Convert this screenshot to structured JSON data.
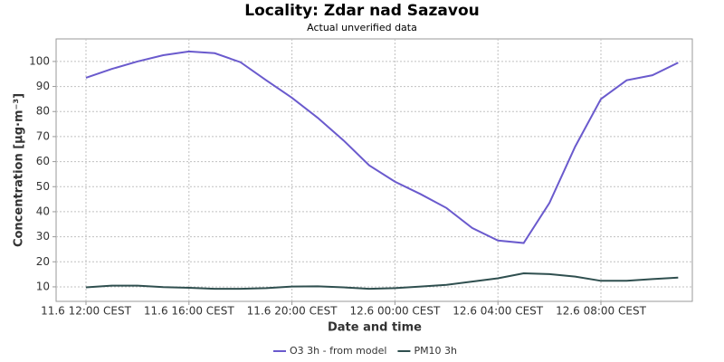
{
  "chart_data": {
    "type": "line",
    "title": "Locality: Zdar nad Sazavou",
    "subtitle": "Actual unverified data",
    "x_label": "Date and time",
    "y_label": "Concentration [µg·m⁻³]",
    "categories": [
      "11.6 12:00 CEST",
      null,
      null,
      null,
      "11.6 16:00 CEST",
      null,
      null,
      null,
      "11.6 20:00 CEST",
      null,
      null,
      null,
      "12.6 00:00 CEST",
      null,
      null,
      null,
      "12.6 04:00 CEST",
      null,
      null,
      null,
      "12.6 08:00 CEST",
      null,
      null,
      null
    ],
    "series": [
      {
        "name": "O3 3h - from model",
        "color": "#6a5acd",
        "values": [
          93.5,
          97,
          100,
          102.5,
          104,
          103.3,
          99.7,
          92.5,
          85.5,
          77.5,
          68.5,
          58.5,
          52,
          47,
          41.5,
          33.5,
          28.5,
          27.5,
          43.5,
          66,
          85,
          92.5,
          94.5,
          99.5
        ]
      },
      {
        "name": "PM10 3h",
        "color": "#2f4f4f",
        "values": [
          9.8,
          10.5,
          10.5,
          9.9,
          9.6,
          9.2,
          9.2,
          9.5,
          10.1,
          10.2,
          9.8,
          9.2,
          9.5,
          10.1,
          10.8,
          12.1,
          13.4,
          15.4,
          15.1,
          14.1,
          12.4,
          12.4,
          13.1,
          13.7
        ]
      }
    ],
    "ylim": [
      4.2,
      109
    ],
    "yticks": [
      10,
      20,
      30,
      40,
      50,
      60,
      70,
      80,
      90,
      100
    ],
    "grid": true,
    "legend": "bottom"
  }
}
